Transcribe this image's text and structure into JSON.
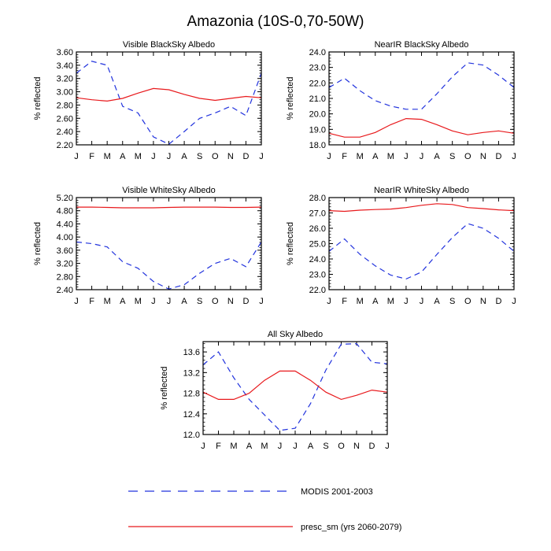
{
  "figure": {
    "title": "Amazonia (10S-0,70-50W)"
  },
  "legend": [
    {
      "label": "MODIS 2001-2003",
      "color": "#2233dd",
      "dash": "dashed"
    },
    {
      "label": "presc_sm (yrs 2060-2079)",
      "color": "#e8191c",
      "dash": "solid"
    }
  ],
  "chart_data": [
    {
      "type": "line",
      "title": "Visible BlackSky Albedo",
      "ylabel": "% reflected",
      "xlabel": "",
      "categories": [
        "J",
        "F",
        "M",
        "A",
        "M",
        "J",
        "J",
        "A",
        "S",
        "O",
        "N",
        "D",
        "J"
      ],
      "ylim": [
        2.2,
        3.6
      ],
      "yticks": [
        "2.20",
        "2.40",
        "2.60",
        "2.80",
        "3.00",
        "3.20",
        "3.40",
        "3.60"
      ],
      "series": [
        {
          "name": "MODIS 2001-2003",
          "values": [
            3.28,
            3.46,
            3.4,
            2.78,
            2.68,
            2.32,
            2.21,
            2.4,
            2.6,
            2.68,
            2.78,
            2.64,
            3.28
          ]
        },
        {
          "name": "presc_sm (yrs 2060-2079)",
          "values": [
            2.91,
            2.88,
            2.86,
            2.9,
            2.98,
            3.05,
            3.03,
            2.96,
            2.9,
            2.87,
            2.9,
            2.93,
            2.91
          ]
        }
      ]
    },
    {
      "type": "line",
      "title": "NearIR BlackSky Albedo",
      "ylabel": "% reflected",
      "xlabel": "",
      "categories": [
        "J",
        "F",
        "M",
        "A",
        "M",
        "J",
        "J",
        "A",
        "S",
        "O",
        "N",
        "D",
        "J"
      ],
      "ylim": [
        18.0,
        24.0
      ],
      "yticks": [
        "18.0",
        "19.0",
        "20.0",
        "21.0",
        "22.0",
        "23.0",
        "24.0"
      ],
      "series": [
        {
          "name": "MODIS 2001-2003",
          "values": [
            21.7,
            22.3,
            21.5,
            20.85,
            20.5,
            20.3,
            20.3,
            21.3,
            22.4,
            23.3,
            23.15,
            22.5,
            21.7
          ]
        },
        {
          "name": "presc_sm (yrs 2060-2079)",
          "values": [
            18.75,
            18.5,
            18.5,
            18.8,
            19.3,
            19.7,
            19.65,
            19.3,
            18.9,
            18.65,
            18.8,
            18.9,
            18.75
          ]
        }
      ]
    },
    {
      "type": "line",
      "title": "Visible WhiteSky Albedo",
      "ylabel": "% reflected",
      "xlabel": "",
      "categories": [
        "J",
        "F",
        "M",
        "A",
        "M",
        "J",
        "J",
        "A",
        "S",
        "O",
        "N",
        "D",
        "J"
      ],
      "ylim": [
        2.4,
        5.2
      ],
      "yticks": [
        "2.40",
        "2.80",
        "3.20",
        "3.60",
        "4.00",
        "4.40",
        "4.80",
        "5.20"
      ],
      "series": [
        {
          "name": "MODIS 2001-2003",
          "values": [
            3.85,
            3.8,
            3.7,
            3.25,
            3.05,
            2.65,
            2.42,
            2.55,
            2.9,
            3.2,
            3.35,
            3.1,
            3.85
          ]
        },
        {
          "name": "presc_sm (yrs 2060-2079)",
          "values": [
            4.91,
            4.91,
            4.9,
            4.89,
            4.89,
            4.89,
            4.9,
            4.91,
            4.91,
            4.91,
            4.9,
            4.9,
            4.91
          ]
        }
      ]
    },
    {
      "type": "line",
      "title": "NearIR WhiteSky Albedo",
      "ylabel": "% reflected",
      "xlabel": "",
      "categories": [
        "J",
        "F",
        "M",
        "A",
        "M",
        "J",
        "J",
        "A",
        "S",
        "O",
        "N",
        "D",
        "J"
      ],
      "ylim": [
        22.0,
        28.0
      ],
      "yticks": [
        "22.0",
        "23.0",
        "24.0",
        "25.0",
        "26.0",
        "27.0",
        "28.0"
      ],
      "series": [
        {
          "name": "MODIS 2001-2003",
          "values": [
            24.5,
            25.3,
            24.3,
            23.55,
            22.95,
            22.7,
            23.15,
            24.3,
            25.4,
            26.3,
            26.0,
            25.35,
            24.5
          ]
        },
        {
          "name": "presc_sm (yrs 2060-2079)",
          "values": [
            27.15,
            27.1,
            27.18,
            27.22,
            27.25,
            27.35,
            27.5,
            27.6,
            27.55,
            27.35,
            27.28,
            27.2,
            27.15
          ]
        }
      ]
    },
    {
      "type": "line",
      "title": "All Sky Albedo",
      "ylabel": "% reflected",
      "xlabel": "",
      "categories": [
        "J",
        "F",
        "M",
        "A",
        "M",
        "J",
        "J",
        "A",
        "S",
        "O",
        "N",
        "D",
        "J"
      ],
      "ylim": [
        12.0,
        13.8
      ],
      "yticks": [
        "12.0",
        "12.4",
        "12.8",
        "13.2",
        "13.6"
      ],
      "series": [
        {
          "name": "MODIS 2001-2003",
          "values": [
            13.35,
            13.6,
            13.1,
            12.68,
            12.38,
            12.08,
            12.12,
            12.6,
            13.25,
            13.75,
            13.76,
            13.4,
            13.37
          ]
        },
        {
          "name": "presc_sm (yrs 2060-2079)",
          "values": [
            12.82,
            12.68,
            12.68,
            12.8,
            13.05,
            13.23,
            13.23,
            13.05,
            12.82,
            12.68,
            12.76,
            12.86,
            12.82
          ]
        }
      ]
    }
  ]
}
